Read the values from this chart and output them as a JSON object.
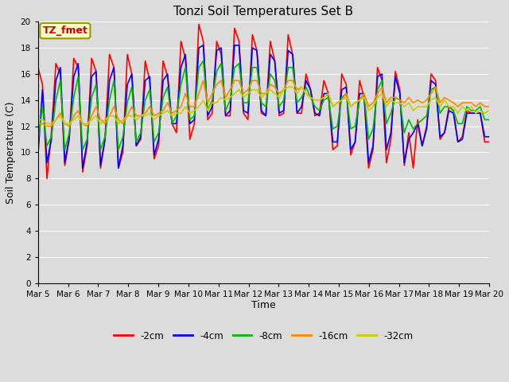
{
  "title": "Tonzi Soil Temperatures Set B",
  "xlabel": "Time",
  "ylabel": "Soil Temperature (C)",
  "annotation": "TZ_fmet",
  "ylim": [
    0,
    20
  ],
  "yticks": [
    0,
    2,
    4,
    6,
    8,
    10,
    12,
    14,
    16,
    18,
    20
  ],
  "xtick_labels": [
    "Mar 5",
    "Mar 6",
    "Mar 7",
    "Mar 8",
    "Mar 9",
    "Mar 10",
    "Mar 11",
    "Mar 12",
    "Mar 13",
    "Mar 14",
    "Mar 15",
    "Mar 16",
    "Mar 17",
    "Mar 18",
    "Mar 19",
    "Mar 20"
  ],
  "series_colors": [
    "#ff0000",
    "#0000ff",
    "#00bb00",
    "#ff8800",
    "#cccc00"
  ],
  "series_labels": [
    "-2cm",
    "-4cm",
    "-8cm",
    "-16cm",
    "-32cm"
  ],
  "bg_color": "#dcdcdc",
  "linewidth": 1.2,
  "d2cm": [
    16.5,
    15.2,
    8.0,
    11.5,
    16.8,
    16.0,
    9.0,
    11.0,
    17.2,
    16.5,
    8.5,
    10.5,
    17.2,
    16.2,
    8.8,
    11.0,
    17.5,
    16.5,
    8.8,
    10.0,
    17.5,
    16.0,
    10.5,
    11.0,
    17.0,
    15.5,
    9.5,
    10.5,
    17.0,
    15.8,
    12.2,
    11.5,
    18.5,
    17.2,
    11.0,
    12.2,
    19.8,
    18.5,
    12.5,
    13.0,
    18.5,
    17.5,
    12.8,
    12.8,
    19.5,
    18.5,
    13.0,
    12.5,
    19.0,
    17.8,
    13.0,
    12.8,
    18.5,
    17.0,
    12.8,
    13.0,
    19.0,
    17.5,
    13.0,
    13.0,
    16.0,
    14.8,
    12.8,
    13.0,
    15.5,
    14.5,
    10.2,
    10.5,
    16.0,
    15.2,
    9.8,
    10.8,
    15.5,
    14.2,
    8.8,
    10.2,
    16.5,
    15.5,
    9.2,
    11.0,
    16.2,
    14.8,
    9.0,
    11.5,
    8.8,
    12.5,
    10.5,
    12.0,
    16.0,
    15.5,
    11.0,
    11.5,
    13.5,
    13.2,
    10.8,
    11.2,
    13.2,
    13.0,
    13.0,
    13.0,
    10.8,
    10.8
  ],
  "d4cm": [
    9.8,
    14.8,
    9.2,
    11.0,
    15.5,
    16.5,
    9.2,
    11.2,
    15.8,
    16.8,
    8.8,
    10.8,
    15.8,
    16.2,
    9.0,
    11.0,
    15.5,
    16.5,
    8.8,
    10.5,
    15.2,
    16.0,
    10.5,
    11.2,
    15.5,
    15.8,
    9.8,
    11.0,
    15.5,
    16.0,
    12.2,
    12.2,
    16.5,
    17.5,
    12.2,
    12.5,
    18.0,
    18.2,
    12.8,
    13.5,
    17.8,
    18.0,
    12.8,
    13.2,
    18.2,
    18.2,
    13.2,
    13.0,
    18.0,
    17.8,
    13.2,
    12.8,
    17.5,
    17.0,
    13.0,
    13.2,
    17.8,
    17.5,
    13.0,
    13.5,
    15.5,
    14.8,
    13.0,
    12.8,
    14.5,
    14.5,
    10.8,
    10.8,
    14.8,
    15.0,
    10.2,
    10.8,
    14.5,
    14.5,
    9.2,
    10.5,
    15.8,
    16.0,
    10.2,
    11.5,
    15.8,
    14.5,
    9.2,
    11.0,
    11.5,
    12.2,
    10.5,
    11.8,
    15.5,
    15.2,
    11.2,
    11.5,
    13.2,
    13.0,
    10.8,
    11.0,
    13.0,
    13.0,
    13.0,
    13.0,
    11.2,
    11.2
  ],
  "d8cm": [
    10.8,
    13.5,
    10.5,
    11.2,
    14.0,
    15.5,
    10.2,
    11.5,
    14.2,
    15.8,
    10.2,
    11.0,
    14.2,
    15.2,
    10.2,
    11.2,
    14.0,
    15.5,
    10.2,
    11.2,
    13.8,
    15.0,
    10.8,
    11.5,
    14.0,
    14.8,
    10.8,
    11.5,
    14.2,
    15.0,
    12.2,
    12.8,
    15.2,
    16.5,
    12.5,
    12.8,
    16.5,
    17.0,
    13.2,
    14.0,
    16.2,
    16.8,
    13.2,
    14.0,
    16.5,
    16.8,
    13.8,
    13.8,
    16.5,
    16.5,
    13.8,
    13.5,
    16.0,
    15.5,
    13.5,
    14.0,
    16.5,
    16.5,
    13.8,
    14.2,
    15.0,
    14.2,
    13.5,
    13.2,
    14.0,
    14.2,
    11.8,
    12.0,
    14.2,
    14.5,
    11.8,
    12.0,
    14.0,
    14.5,
    11.0,
    11.8,
    14.8,
    15.5,
    12.2,
    13.0,
    14.2,
    14.0,
    11.5,
    12.5,
    11.8,
    12.2,
    12.5,
    12.8,
    14.8,
    15.0,
    13.0,
    13.5,
    13.5,
    13.2,
    12.2,
    12.2,
    13.5,
    13.2,
    13.2,
    13.5,
    12.5,
    12.5
  ],
  "d16cm": [
    12.2,
    12.2,
    12.0,
    12.0,
    12.5,
    13.0,
    12.2,
    12.0,
    12.8,
    13.2,
    12.2,
    12.0,
    12.8,
    13.5,
    12.5,
    12.2,
    12.8,
    13.5,
    12.5,
    12.2,
    12.8,
    13.5,
    12.8,
    12.8,
    13.0,
    13.5,
    12.8,
    13.0,
    13.2,
    13.8,
    13.0,
    13.2,
    13.5,
    14.5,
    13.5,
    13.5,
    14.5,
    15.5,
    13.8,
    14.5,
    15.2,
    15.5,
    14.2,
    14.8,
    15.5,
    15.5,
    14.5,
    14.8,
    15.5,
    15.5,
    14.5,
    14.5,
    15.2,
    15.0,
    14.5,
    14.8,
    15.5,
    15.5,
    14.8,
    15.0,
    14.5,
    14.2,
    14.0,
    14.0,
    14.2,
    14.5,
    13.5,
    13.8,
    14.0,
    14.5,
    13.5,
    13.8,
    14.0,
    14.5,
    13.5,
    13.8,
    14.5,
    15.0,
    13.8,
    14.2,
    14.2,
    14.0,
    13.8,
    14.2,
    13.8,
    14.0,
    13.8,
    14.0,
    14.5,
    15.0,
    13.8,
    14.2,
    14.0,
    13.8,
    13.5,
    13.8,
    13.8,
    13.8,
    13.5,
    13.8,
    13.5,
    13.5
  ],
  "d32cm": [
    12.5,
    12.5,
    12.2,
    12.2,
    12.5,
    12.8,
    12.2,
    12.2,
    12.5,
    12.8,
    12.2,
    12.2,
    12.5,
    12.8,
    12.2,
    12.5,
    12.8,
    12.8,
    12.2,
    12.5,
    12.8,
    12.8,
    12.5,
    12.8,
    12.8,
    13.0,
    12.5,
    12.8,
    13.0,
    13.2,
    12.8,
    13.0,
    13.0,
    13.5,
    13.0,
    13.2,
    13.5,
    14.0,
    13.2,
    13.8,
    13.8,
    14.2,
    14.0,
    14.2,
    14.5,
    14.8,
    14.2,
    14.5,
    14.8,
    14.8,
    14.2,
    14.5,
    14.8,
    14.5,
    14.2,
    14.8,
    15.0,
    15.0,
    14.5,
    15.0,
    14.5,
    14.2,
    14.0,
    14.0,
    14.2,
    14.5,
    13.5,
    13.8,
    14.0,
    14.2,
    13.5,
    13.8,
    14.0,
    14.2,
    13.2,
    13.5,
    14.2,
    14.5,
    13.5,
    14.0,
    13.8,
    13.8,
    13.5,
    13.8,
    13.2,
    13.5,
    13.5,
    13.5,
    14.0,
    14.2,
    13.5,
    14.0,
    13.5,
    13.5,
    13.0,
    13.5,
    13.2,
    13.5,
    13.0,
    13.2,
    13.0,
    13.2
  ]
}
